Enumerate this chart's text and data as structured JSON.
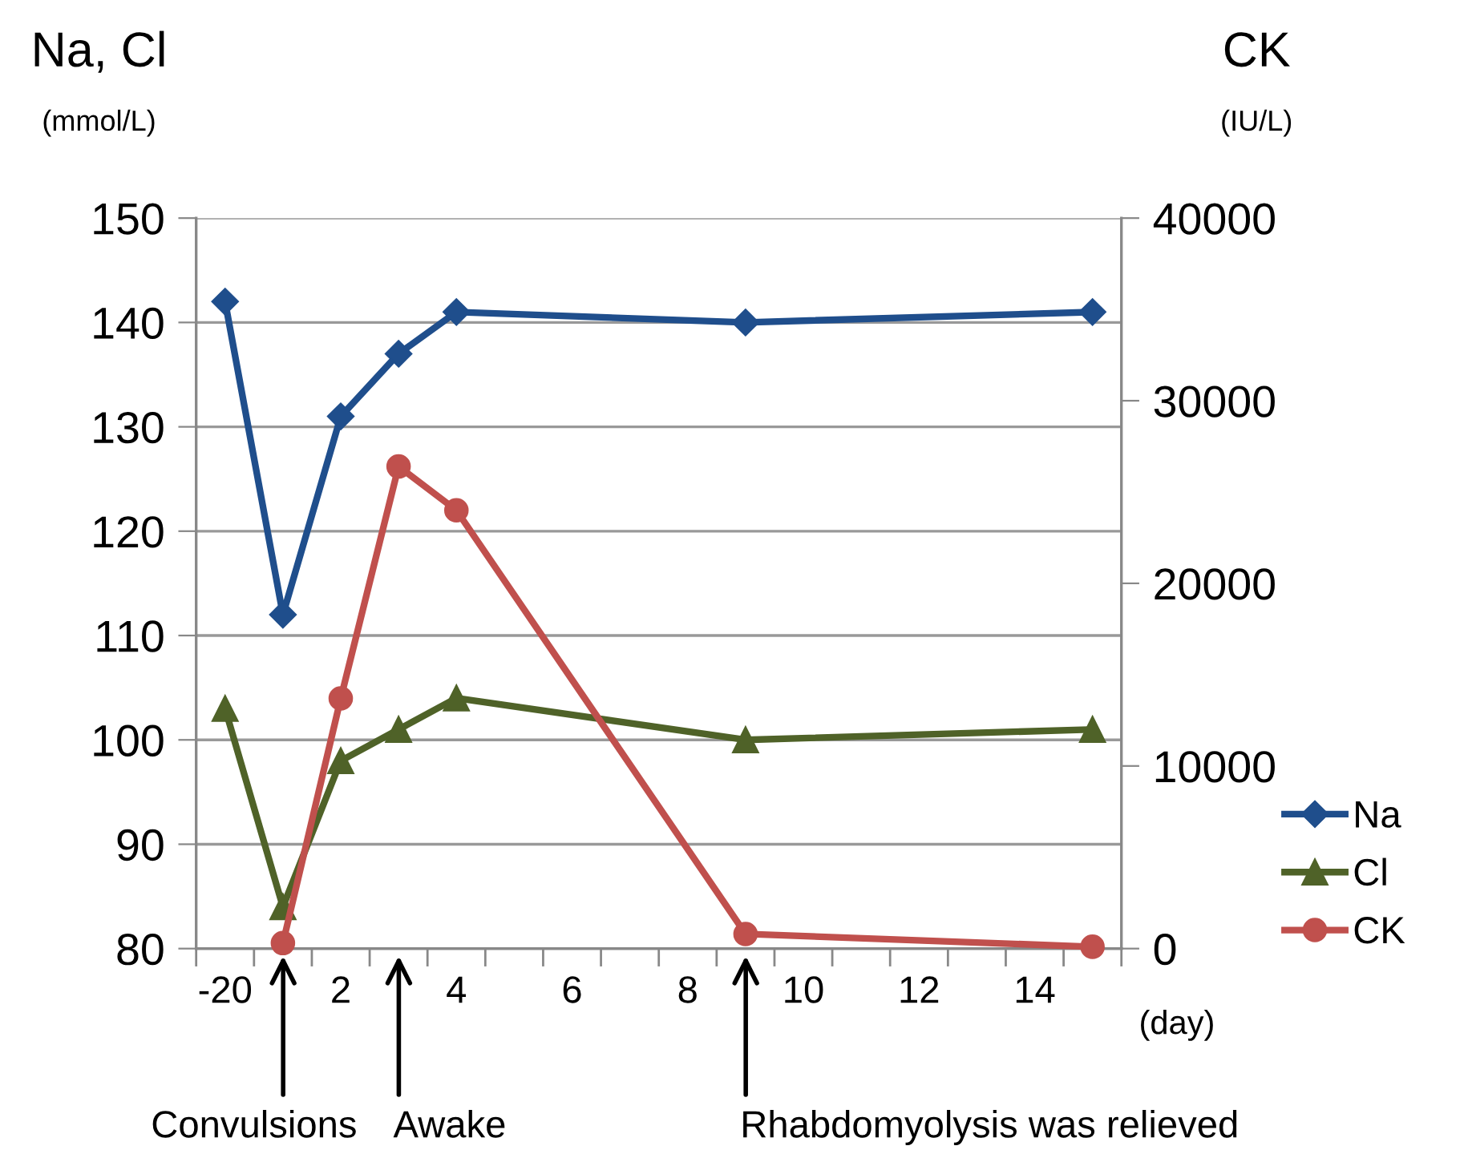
{
  "chart_data": {
    "type": "line",
    "categories": [
      "-20",
      null,
      "2",
      null,
      "4",
      null,
      "6",
      null,
      "8",
      null,
      "10",
      null,
      "12",
      null,
      "14",
      null
    ],
    "series": [
      {
        "name": "Na",
        "color": "#1f4e8c",
        "marker": "diamond",
        "values": [
          142,
          112,
          131,
          137,
          141,
          null,
          null,
          null,
          null,
          140,
          null,
          null,
          null,
          null,
          null,
          141
        ]
      },
      {
        "name": "Cl",
        "color": "#4f6228",
        "marker": "triangle",
        "values": [
          103,
          84,
          98,
          101,
          104,
          null,
          null,
          null,
          null,
          100,
          null,
          null,
          null,
          null,
          null,
          101
        ]
      },
      {
        "name": "CK",
        "color": "#c0504d",
        "marker": "circle",
        "axis": "y2",
        "values": [
          null,
          300,
          13700,
          26400,
          24000,
          null,
          null,
          null,
          null,
          800,
          null,
          null,
          null,
          null,
          null,
          100
        ]
      }
    ],
    "ylim": [
      80,
      150
    ],
    "yticks": [
      80,
      90,
      100,
      110,
      120,
      130,
      140,
      150
    ],
    "y2lim": [
      0,
      40000
    ],
    "y2ticks": [
      0,
      10000,
      20000,
      30000,
      40000
    ],
    "xlabel": "(day)",
    "ylabel": "Na, Cl",
    "y2label": "CK",
    "annotations": [
      "(mmol/L)",
      "(IU/L)",
      "Convulsions",
      "Awake",
      "Rhabdomyolysis was relieved"
    ],
    "grid": "y",
    "legend": "right",
    "line_style": "solid"
  }
}
